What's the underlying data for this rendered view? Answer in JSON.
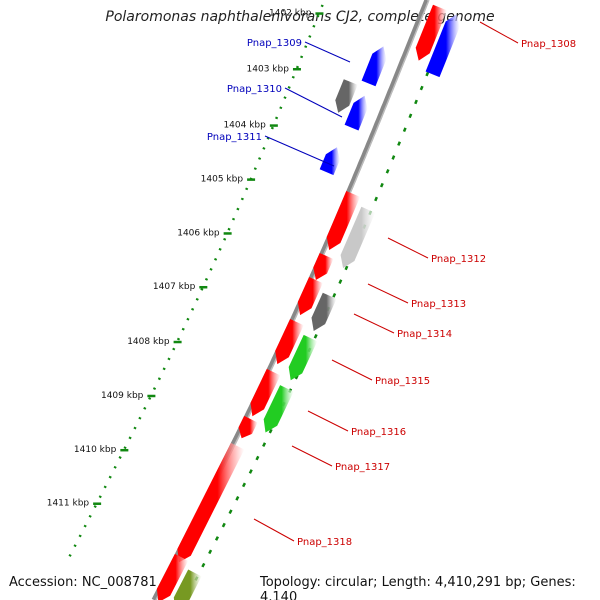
{
  "title": "Polaromonas naphthalenivorans CJ2, complete genome",
  "accession": "Accession: NC_008781",
  "topology": "Topology: circular; Length: 4,410,291 bp; Genes: 4,140",
  "colors": {
    "forward_gene": "#ff0000",
    "reverse_gene": "#0000ff",
    "grey_gene": "#666666",
    "light_grey_gene": "#c8c8c8",
    "green_gene": "#22cc22",
    "olive_gene": "#779922",
    "tick": "#118811",
    "label_red": "#cc0000",
    "label_blue": "#0000bb"
  },
  "kbp_ticks": [
    "1402 kbp",
    "1403 kbp",
    "1404 kbp",
    "1405 kbp",
    "1406 kbp",
    "1407 kbp",
    "1408 kbp",
    "1409 kbp",
    "1410 kbp",
    "1411 kbp"
  ],
  "gene_labels": {
    "left": [
      "Pnap_1309",
      "Pnap_1310",
      "Pnap_1311"
    ],
    "right": [
      "Pnap_1308",
      "Pnap_1312",
      "Pnap_1313",
      "Pnap_1314",
      "Pnap_1315",
      "Pnap_1316",
      "Pnap_1317",
      "Pnap_1318"
    ]
  }
}
